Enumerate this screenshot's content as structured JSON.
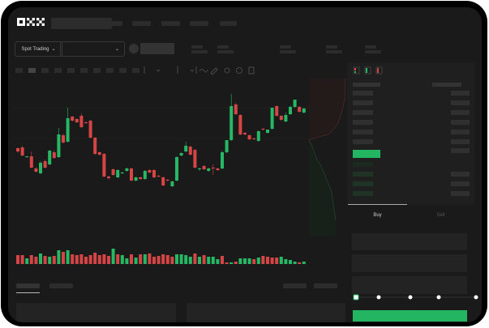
{
  "brand": {
    "logo_text": "OKX"
  },
  "toolbar": {
    "market_selector_label": "Spot Trading",
    "chevron": "chevron-down-icon"
  },
  "order_form": {
    "tabs": [
      {
        "label": "Buy",
        "active": true
      },
      {
        "label": "Sell",
        "active": false
      }
    ],
    "slider_level_percent": 0
  },
  "colors": {
    "up": "#26b865",
    "down": "#d64545",
    "background": "#1a1a1a",
    "accent": "#24b562"
  },
  "chart_data": {
    "type": "candlestick",
    "candles": [
      [
        118,
        119,
        112,
        114
      ],
      [
        119,
        121,
        108,
        109
      ],
      [
        107,
        108,
        106,
        108
      ],
      [
        108,
        114,
        93,
        94
      ],
      [
        93,
        95,
        88,
        89
      ],
      [
        87,
        102,
        86,
        100
      ],
      [
        102,
        104,
        93,
        94
      ],
      [
        98,
        116,
        97,
        115
      ],
      [
        113,
        115,
        105,
        106
      ],
      [
        107,
        143,
        106,
        135
      ],
      [
        134,
        136,
        124,
        125
      ],
      [
        126,
        168,
        125,
        155
      ],
      [
        157,
        158,
        151,
        152
      ],
      [
        154,
        155,
        149,
        150
      ],
      [
        158,
        161,
        143,
        144
      ],
      [
        150,
        151,
        148,
        149
      ],
      [
        152,
        153,
        130,
        131
      ],
      [
        131,
        132,
        110,
        111
      ],
      [
        113,
        114,
        109,
        110
      ],
      [
        111,
        112,
        82,
        83
      ],
      [
        83,
        84,
        79,
        81
      ],
      [
        92,
        93,
        84,
        85
      ],
      [
        82,
        92,
        81,
        91
      ],
      [
        87,
        89,
        86,
        88
      ],
      [
        90,
        94,
        89,
        93
      ],
      [
        93,
        94,
        77,
        78
      ],
      [
        78,
        83,
        77,
        82
      ],
      [
        82,
        83,
        79,
        80
      ],
      [
        80,
        91,
        79,
        90
      ],
      [
        91,
        92,
        87,
        88
      ],
      [
        91,
        92,
        81,
        82
      ],
      [
        84,
        85,
        82,
        83
      ],
      [
        82,
        83,
        71,
        72
      ],
      [
        79,
        80,
        77,
        78
      ],
      [
        71,
        78,
        70,
        77
      ],
      [
        78,
        108,
        77,
        107
      ],
      [
        109,
        113,
        108,
        112
      ],
      [
        114,
        126,
        113,
        121
      ],
      [
        120,
        121,
        109,
        110
      ],
      [
        116,
        117,
        93,
        94
      ],
      [
        92,
        94,
        90,
        93
      ],
      [
        96,
        97,
        91,
        92
      ],
      [
        90,
        94,
        89,
        93
      ],
      [
        94,
        98,
        85,
        93
      ],
      [
        93,
        94,
        90,
        91
      ],
      [
        93,
        115,
        92,
        113
      ],
      [
        113,
        128,
        112,
        128
      ],
      [
        128,
        185,
        127,
        170
      ],
      [
        172,
        174,
        159,
        160
      ],
      [
        159,
        160,
        134,
        135
      ],
      [
        137,
        138,
        134,
        135
      ],
      [
        134,
        135,
        128,
        129
      ],
      [
        130,
        131,
        128,
        129
      ],
      [
        127,
        140,
        126,
        139
      ],
      [
        142,
        143,
        140,
        141
      ],
      [
        137,
        141,
        136,
        141
      ],
      [
        142,
        168,
        141,
        168
      ],
      [
        170,
        171,
        157,
        158
      ],
      [
        158,
        159,
        152,
        153
      ],
      [
        151,
        162,
        150,
        159
      ],
      [
        160,
        171,
        159,
        169
      ],
      [
        169,
        178,
        168,
        178
      ],
      [
        169,
        170,
        162,
        163
      ],
      [
        162,
        168,
        161,
        167
      ]
    ],
    "volume": [
      {
        "v": 11,
        "d": "down"
      },
      {
        "v": 11,
        "d": "down"
      },
      {
        "v": 7,
        "d": "up"
      },
      {
        "v": 11,
        "d": "down"
      },
      {
        "v": 9,
        "d": "down"
      },
      {
        "v": 13,
        "d": "up"
      },
      {
        "v": 10,
        "d": "down"
      },
      {
        "v": 9,
        "d": "up"
      },
      {
        "v": 10,
        "d": "down"
      },
      {
        "v": 17,
        "d": "up"
      },
      {
        "v": 15,
        "d": "down"
      },
      {
        "v": 17,
        "d": "up"
      },
      {
        "v": 12,
        "d": "down"
      },
      {
        "v": 11,
        "d": "down"
      },
      {
        "v": 12,
        "d": "down"
      },
      {
        "v": 9,
        "d": "down"
      },
      {
        "v": 11,
        "d": "down"
      },
      {
        "v": 14,
        "d": "down"
      },
      {
        "v": 11,
        "d": "down"
      },
      {
        "v": 12,
        "d": "down"
      },
      {
        "v": 10,
        "d": "down"
      },
      {
        "v": 19,
        "d": "up"
      },
      {
        "v": 12,
        "d": "down"
      },
      {
        "v": 11,
        "d": "up"
      },
      {
        "v": 7,
        "d": "up"
      },
      {
        "v": 12,
        "d": "down"
      },
      {
        "v": 8,
        "d": "up"
      },
      {
        "v": 12,
        "d": "down"
      },
      {
        "v": 12,
        "d": "up"
      },
      {
        "v": 13,
        "d": "down"
      },
      {
        "v": 9,
        "d": "down"
      },
      {
        "v": 10,
        "d": "down"
      },
      {
        "v": 12,
        "d": "down"
      },
      {
        "v": 11,
        "d": "down"
      },
      {
        "v": 9,
        "d": "down"
      },
      {
        "v": 12,
        "d": "up"
      },
      {
        "v": 12,
        "d": "up"
      },
      {
        "v": 11,
        "d": "up"
      },
      {
        "v": 9,
        "d": "up"
      },
      {
        "v": 13,
        "d": "down"
      },
      {
        "v": 9,
        "d": "up"
      },
      {
        "v": 11,
        "d": "down"
      },
      {
        "v": 9,
        "d": "up"
      },
      {
        "v": 9,
        "d": "up"
      },
      {
        "v": 6,
        "d": "up"
      },
      {
        "v": 10,
        "d": "down"
      },
      {
        "v": 2,
        "d": "down"
      },
      {
        "v": 2,
        "d": "up"
      },
      {
        "v": 3,
        "d": "down"
      },
      {
        "v": 7,
        "d": "up"
      },
      {
        "v": 7,
        "d": "up"
      },
      {
        "v": 7,
        "d": "up"
      },
      {
        "v": 6,
        "d": "down"
      },
      {
        "v": 8,
        "d": "up"
      },
      {
        "v": 10,
        "d": "down"
      },
      {
        "v": 9,
        "d": "down"
      },
      {
        "v": 8,
        "d": "down"
      },
      {
        "v": 8,
        "d": "down"
      },
      {
        "v": 9,
        "d": "up"
      },
      {
        "v": 6,
        "d": "up"
      },
      {
        "v": 5,
        "d": "up"
      },
      {
        "v": 3,
        "d": "up"
      },
      {
        "v": 2,
        "d": "down"
      },
      {
        "v": 3,
        "d": "up"
      }
    ]
  }
}
